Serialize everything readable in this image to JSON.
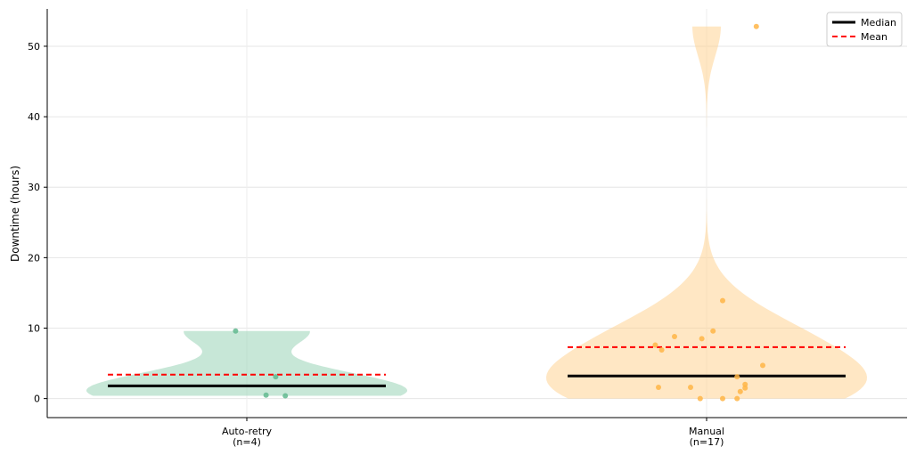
{
  "chart_data": {
    "type": "violin",
    "ylabel": "Downtime (hours)",
    "ylim": [
      -2.7,
      55.3
    ],
    "yticks": [
      0,
      10,
      20,
      30,
      40,
      50
    ],
    "grid": true,
    "legend": {
      "placement": "top-right",
      "entries": [
        {
          "label": "Median",
          "style": "solid",
          "color": "#000000"
        },
        {
          "label": "Mean",
          "style": "dashed",
          "color": "#ff0000"
        }
      ]
    },
    "groups": [
      {
        "label": "Auto-retry",
        "count_label": "(n=4)",
        "color": "#8fd0b0",
        "point_color": "#62b98f",
        "median": 1.8,
        "mean": 3.4,
        "points": [
          9.6,
          3.1,
          0.5,
          0.4
        ],
        "point_offsets": [
          -0.07,
          0.18,
          0.12,
          0.24
        ]
      },
      {
        "label": "Manual",
        "count_label": "(n=17)",
        "color": "#ffcf8a",
        "point_color": "#ffb547",
        "median": 3.2,
        "mean": 7.3,
        "points": [
          52.8,
          13.9,
          9.6,
          8.8,
          8.5,
          7.6,
          6.9,
          4.7,
          3.1,
          2.0,
          1.6,
          1.5,
          1.6,
          1.0,
          0.0,
          0.0,
          0.0
        ],
        "point_offsets": [
          0.31,
          0.1,
          0.04,
          -0.2,
          -0.03,
          -0.32,
          -0.28,
          0.35,
          0.19,
          0.24,
          -0.3,
          0.24,
          -0.1,
          0.21,
          -0.04,
          0.1,
          0.19
        ]
      }
    ]
  }
}
